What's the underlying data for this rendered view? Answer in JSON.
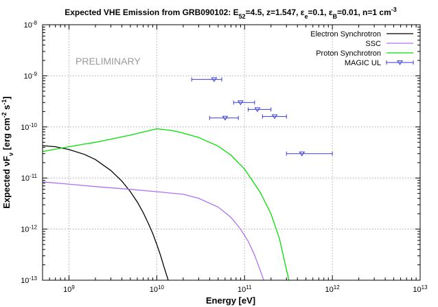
{
  "chart_data": {
    "type": "line",
    "title_main": "Expected VHE Emission from GRB090102: E",
    "title_sub_52": "52",
    "title_mid1": "=4.5, z=1.547, ",
    "title_eps": "ε",
    "title_sub_e": "e",
    "title_mid2": "=0.1, ",
    "title_sub_B": "B",
    "title_mid3": "=0.01, n=1 cm",
    "title_sup": "-3",
    "xlabel": "Energy [eV]",
    "ylabel_a": "Expected νF",
    "ylabel_sub": "ν",
    "ylabel_b": " [erg cm",
    "ylabel_sup1": "-2",
    "ylabel_c": " s",
    "ylabel_sup2": "-1",
    "ylabel_d": "]",
    "annotation": "PRELIMINARY",
    "xscale": "log",
    "yscale": "log",
    "xlim": [
      500000000,
      10000000000000
    ],
    "ylim": [
      1e-13,
      1e-08
    ],
    "grid": true,
    "legend_position": "top-right",
    "x_ticks": [
      {
        "exp": "9",
        "value": 1000000000
      },
      {
        "exp": "10",
        "value": 10000000000
      },
      {
        "exp": "11",
        "value": 100000000000
      },
      {
        "exp": "12",
        "value": 1000000000000
      },
      {
        "exp": "13",
        "value": 10000000000000
      }
    ],
    "y_ticks": [
      {
        "exp": "-13",
        "value": 1e-13
      },
      {
        "exp": "-12",
        "value": 1e-12
      },
      {
        "exp": "-11",
        "value": 1e-11
      },
      {
        "exp": "-10",
        "value": 1e-10
      },
      {
        "exp": "-9",
        "value": 1e-09
      },
      {
        "exp": "-8",
        "value": 1e-08
      }
    ],
    "tick_base": "10",
    "series": [
      {
        "name": "Electron Synchrotron",
        "color": "#000000",
        "points": [
          [
            500000000,
            4.3e-11
          ],
          [
            700000000,
            4.1e-11
          ],
          [
            1000000000,
            3.6e-11
          ],
          [
            1500000000,
            2.9e-11
          ],
          [
            2000000000,
            2.3e-11
          ],
          [
            3000000000,
            1.4e-11
          ],
          [
            4000000000,
            8.7e-12
          ],
          [
            5000000000,
            5.4e-12
          ],
          [
            6000000000,
            3.4e-12
          ],
          [
            7000000000,
            2.1e-12
          ],
          [
            8000000000,
            1.3e-12
          ],
          [
            9000000000,
            8.2e-13
          ],
          [
            10000000000,
            5e-13
          ],
          [
            11000000000,
            3.1e-13
          ],
          [
            12000000000,
            1.9e-13
          ],
          [
            13500000000,
            1e-13
          ]
        ]
      },
      {
        "name": "SSC",
        "color": "#b070f0",
        "points": [
          [
            500000000,
            8.4e-12
          ],
          [
            1000000000,
            7.6e-12
          ],
          [
            2000000000,
            6.8e-12
          ],
          [
            5000000000,
            6e-12
          ],
          [
            10000000000,
            5.4e-12
          ],
          [
            20000000000,
            4.8e-12
          ],
          [
            30000000000,
            4e-12
          ],
          [
            50000000000,
            2.7e-12
          ],
          [
            70000000000,
            1.7e-12
          ],
          [
            90000000000,
            1e-12
          ],
          [
            110000000000,
            5.8e-13
          ],
          [
            130000000000,
            3.1e-13
          ],
          [
            150000000000,
            1.6e-13
          ],
          [
            165000000000,
            1e-13
          ]
        ]
      },
      {
        "name": "Proton Synchrotron",
        "color": "#00e000",
        "points": [
          [
            500000000,
            3.3e-11
          ],
          [
            1000000000,
            4.1e-11
          ],
          [
            2000000000,
            5e-11
          ],
          [
            5000000000,
            6.9e-11
          ],
          [
            10000000000,
            9.2e-11
          ],
          [
            15000000000,
            8.5e-11
          ],
          [
            20000000000,
            7.6e-11
          ],
          [
            30000000000,
            6.2e-11
          ],
          [
            50000000000,
            4.2e-11
          ],
          [
            70000000000,
            2.8e-11
          ],
          [
            100000000000,
            1.5e-11
          ],
          [
            150000000000,
            5.3e-12
          ],
          [
            200000000000,
            2e-12
          ],
          [
            250000000000,
            6.5e-13
          ],
          [
            300000000000,
            1.6e-13
          ],
          [
            320000000000,
            1e-13
          ]
        ]
      },
      {
        "name": "MAGIC UL",
        "color": "#3a3adc",
        "points": [
          {
            "x": 45000000000,
            "y": 8.5e-10,
            "xlo": 25000000000,
            "xhi": 55000000000
          },
          {
            "x": 90000000000,
            "y": 3e-10,
            "xlo": 75000000000,
            "xhi": 130000000000
          },
          {
            "x": 140000000000,
            "y": 2.2e-10,
            "xlo": 110000000000,
            "xhi": 200000000000
          },
          {
            "x": 60000000000,
            "y": 1.5e-10,
            "xlo": 40000000000,
            "xhi": 85000000000
          },
          {
            "x": 220000000000,
            "y": 1.6e-10,
            "xlo": 160000000000,
            "xhi": 300000000000
          },
          {
            "x": 450000000000,
            "y": 3e-11,
            "xlo": 300000000000,
            "xhi": 1000000000000
          }
        ]
      }
    ]
  }
}
